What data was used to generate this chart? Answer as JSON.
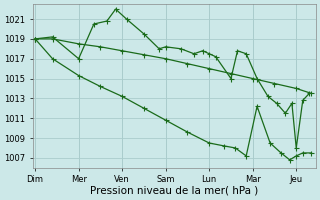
{
  "background_color": "#cce8e8",
  "grid_color": "#aacccc",
  "line_color": "#1a6b1a",
  "title": "Pression niveau de la mer( hPa )",
  "xlabels": [
    "Dim",
    "Mer",
    "Ven",
    "Sam",
    "Lun",
    "Mar",
    "Jeu"
  ],
  "xtick_positions": [
    0,
    1,
    2,
    3,
    4,
    5,
    6
  ],
  "ylim": [
    1006.0,
    1022.5
  ],
  "yticks": [
    1007,
    1009,
    1011,
    1013,
    1015,
    1017,
    1019,
    1021
  ],
  "line1_x": [
    0,
    0.4,
    1.0,
    1.35,
    1.65,
    1.85,
    2.1,
    2.5,
    2.85,
    3.0,
    3.35,
    3.65,
    3.85,
    4.0,
    4.15,
    4.5,
    4.65,
    4.85,
    5.1,
    5.35,
    5.55,
    5.75,
    5.9,
    6.0,
    6.15,
    6.3
  ],
  "line1_y": [
    1019,
    1019.2,
    1017.0,
    1020.5,
    1020.8,
    1022.0,
    1021.0,
    1019.5,
    1018.0,
    1018.2,
    1018.0,
    1017.5,
    1017.8,
    1017.5,
    1017.2,
    1015.0,
    1017.8,
    1017.5,
    1015.0,
    1013.2,
    1012.5,
    1011.5,
    1012.5,
    1008.0,
    1012.8,
    1013.5
  ],
  "line2_x": [
    0,
    0.4,
    1.0,
    1.5,
    2.0,
    2.5,
    3.0,
    3.5,
    4.0,
    4.5,
    5.0,
    5.5,
    6.0,
    6.35
  ],
  "line2_y": [
    1019,
    1019.0,
    1018.5,
    1018.2,
    1017.8,
    1017.4,
    1017.0,
    1016.5,
    1016.0,
    1015.5,
    1015.0,
    1014.5,
    1014.0,
    1013.5
  ],
  "line3_x": [
    0,
    0.4,
    1.0,
    1.5,
    2.0,
    2.5,
    3.0,
    3.5,
    4.0,
    4.35,
    4.6,
    4.85,
    5.1,
    5.4,
    5.65,
    5.85,
    6.0,
    6.15,
    6.35
  ],
  "line3_y": [
    1019,
    1017.0,
    1015.3,
    1014.2,
    1013.2,
    1012.0,
    1010.8,
    1009.6,
    1008.5,
    1008.2,
    1008.0,
    1007.2,
    1012.2,
    1008.5,
    1007.5,
    1006.8,
    1007.2,
    1007.5,
    1007.5
  ],
  "marker_size": 2.0,
  "line_width": 0.9,
  "title_fontsize": 7.5,
  "tick_fontsize": 6.0
}
